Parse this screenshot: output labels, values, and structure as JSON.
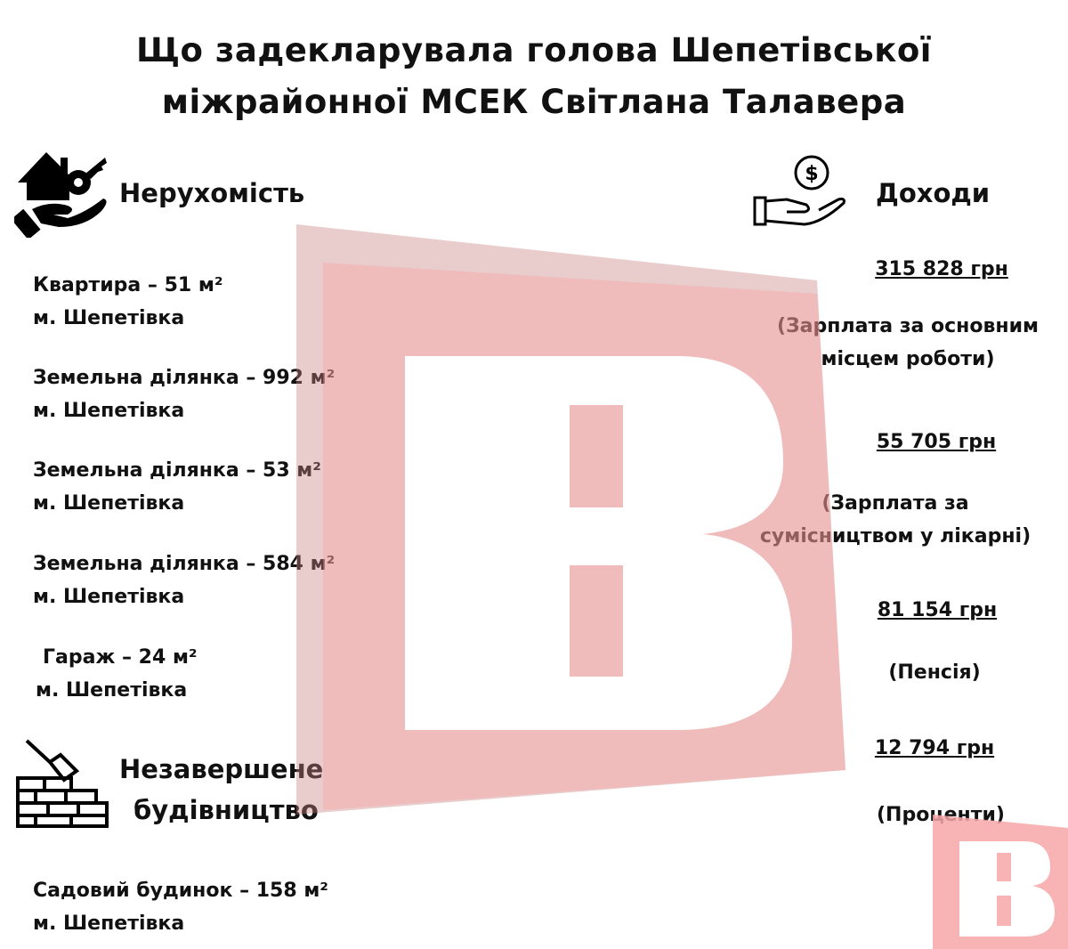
{
  "title": "Що задекларувала голова Шепетівської міжрайонної МСЕК Світлана Талавера",
  "title_lines": [
    "Що задекларувала голова Шепетівської",
    "міжрайонної МСЕК Світлана Талавера"
  ],
  "property": {
    "heading": "Нерухомість",
    "icon": "house-key-hand-icon",
    "items": [
      {
        "line1": "Квартира – 51 м²",
        "line2": "м. Шепетівка"
      },
      {
        "line1": "Земельна ділянка – 992 м²",
        "line2": "м. Шепетівка"
      },
      {
        "line1": "Земельна ділянка – 53 м²",
        "line2": "м. Шепетівка"
      },
      {
        "line1": "Земельна ділянка – 584 м²",
        "line2": "м. Шепетівка"
      },
      {
        "line1": "Гараж – 24 м²",
        "line2": "м. Шепетівка"
      }
    ]
  },
  "construction": {
    "heading_lines": [
      "Незавершене",
      "будівництво"
    ],
    "icon": "brick-wall-trowel-icon",
    "items": [
      {
        "line1": "Садовий будинок – 158 м²",
        "line2": "м. Шепетівка"
      }
    ]
  },
  "income": {
    "heading": "Доходи",
    "icon": "money-hand-icon",
    "items": [
      {
        "amount": "315 828 грн",
        "note_lines": [
          "(Зарплата за основним",
          "місцем роботи)"
        ]
      },
      {
        "amount": "55 705 грн",
        "note_lines": [
          "(Зарплата за",
          "сумісництвом у лікарні)"
        ]
      },
      {
        "amount": "81 154 грн",
        "note_lines": [
          "(Пенсія)"
        ]
      },
      {
        "amount": "12 794 грн",
        "note_lines": [
          "(Проценти)"
        ]
      }
    ]
  },
  "watermark": {
    "letter": "B",
    "color": "#f7a7a7"
  }
}
